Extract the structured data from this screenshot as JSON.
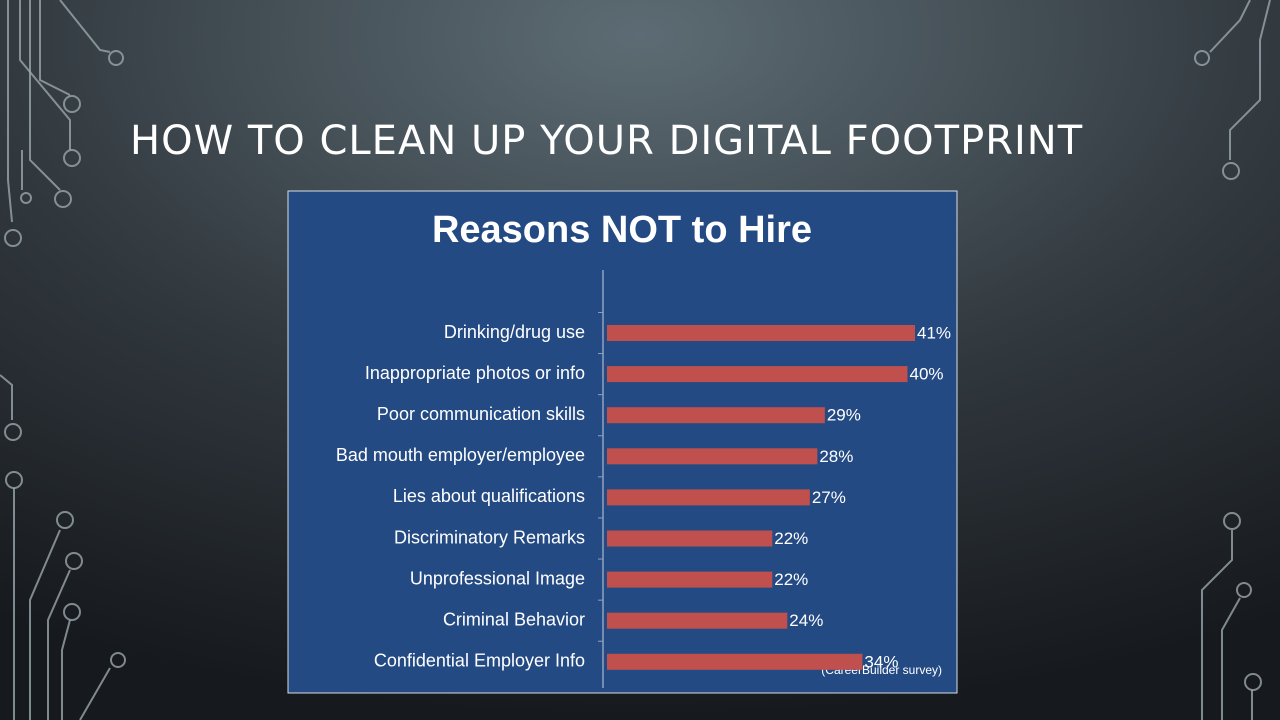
{
  "slide_title": "HOW TO CLEAN UP YOUR DIGITAL FOOTPRINT",
  "chart_data": {
    "type": "bar",
    "orientation": "horizontal",
    "title": "Reasons NOT to Hire",
    "categories": [
      "Drinking/drug use",
      "Inappropriate photos or info",
      "Poor communication skills",
      "Bad mouth employer/employee",
      "Lies about qualifications",
      "Discriminatory Remarks",
      "Unprofessional Image",
      "Criminal Behavior",
      "Confidential Employer Info"
    ],
    "values": [
      41,
      40,
      29,
      28,
      27,
      22,
      22,
      24,
      34
    ],
    "value_labels": [
      "41%",
      "40%",
      "29%",
      "28%",
      "27%",
      "22%",
      "22%",
      "24%",
      "34%"
    ],
    "color": "#c0504d",
    "annotation": "(CareerBuilder survey)"
  }
}
